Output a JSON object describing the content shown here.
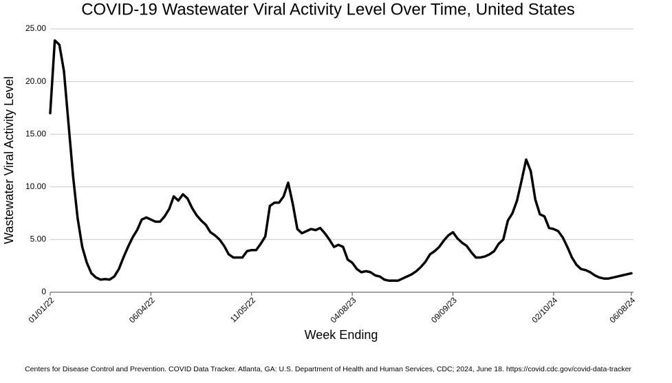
{
  "chart_data": {
    "type": "line",
    "title": "COVID-19 Wastewater Viral Activity Level Over Time, United States",
    "x_label": "Week Ending",
    "y_label": "Wastewater Viral Activity Level",
    "source": "Centers for Disease Control and Prevention. COVID Data Tracker. Atlanta, GA: U.S. Department of Health and Human Services, CDC; 2024, June 18. https://covid.cdc.gov/covid-data-tracker",
    "categories": [
      "01/01/22",
      "01/08/22",
      "01/15/22",
      "01/22/22",
      "01/29/22",
      "02/05/22",
      "02/12/22",
      "02/19/22",
      "02/26/22",
      "03/05/22",
      "03/12/22",
      "03/19/22",
      "03/26/22",
      "04/02/22",
      "04/09/22",
      "04/16/22",
      "04/23/22",
      "04/30/22",
      "05/07/22",
      "05/14/22",
      "05/21/22",
      "05/28/22",
      "06/04/22",
      "06/11/22",
      "06/18/22",
      "06/25/22",
      "07/02/22",
      "07/09/22",
      "07/16/22",
      "07/23/22",
      "07/30/22",
      "08/06/22",
      "08/13/22",
      "08/20/22",
      "08/27/22",
      "09/03/22",
      "09/10/22",
      "09/17/22",
      "09/24/22",
      "10/01/22",
      "10/08/22",
      "10/15/22",
      "10/22/22",
      "10/29/22",
      "11/05/22",
      "11/12/22",
      "11/19/22",
      "11/26/22",
      "12/03/22",
      "12/10/22",
      "12/17/22",
      "12/24/22",
      "12/31/22",
      "01/07/23",
      "01/14/23",
      "01/21/23",
      "01/28/23",
      "02/04/23",
      "02/11/23",
      "02/18/23",
      "02/25/23",
      "03/04/23",
      "03/11/23",
      "03/18/23",
      "03/25/23",
      "04/01/23",
      "04/08/23",
      "04/15/23",
      "04/22/23",
      "04/29/23",
      "05/06/23",
      "05/13/23",
      "05/20/23",
      "05/27/23",
      "06/03/23",
      "06/10/23",
      "06/17/23",
      "06/24/23",
      "07/01/23",
      "07/08/23",
      "07/15/23",
      "07/22/23",
      "07/29/23",
      "08/05/23",
      "08/12/23",
      "08/19/23",
      "08/26/23",
      "09/02/23",
      "09/09/23",
      "09/16/23",
      "09/23/23",
      "09/30/23",
      "10/07/23",
      "10/14/23",
      "10/21/23",
      "10/28/23",
      "11/04/23",
      "11/11/23",
      "11/18/23",
      "11/25/23",
      "12/02/23",
      "12/09/23",
      "12/16/23",
      "12/23/23",
      "12/30/23",
      "01/06/24",
      "01/13/24",
      "01/20/24",
      "01/27/24",
      "02/03/24",
      "02/10/24",
      "02/17/24",
      "02/24/24",
      "03/02/24",
      "03/09/24",
      "03/16/24",
      "03/23/24",
      "03/30/24",
      "04/06/24",
      "04/13/24",
      "04/20/24",
      "04/27/24",
      "05/04/24",
      "05/11/24",
      "05/18/24",
      "05/25/24",
      "06/01/24",
      "06/08/24"
    ],
    "series": [
      {
        "name": "Wastewater Viral Activity Level",
        "color": "#000000",
        "values": [
          17.0,
          23.9,
          23.5,
          21,
          16,
          11,
          7,
          4.3,
          2.8,
          1.8,
          1.4,
          1.2,
          1.25,
          1.2,
          1.5,
          2.2,
          3.3,
          4.3,
          5.2,
          5.9,
          6.9,
          7.1,
          6.9,
          6.7,
          6.7,
          7.2,
          7.9,
          9.1,
          8.7,
          9.3,
          8.9,
          8.0,
          7.3,
          6.8,
          6.4,
          5.7,
          5.4,
          5.0,
          4.4,
          3.6,
          3.3,
          3.3,
          3.3,
          3.9,
          4.0,
          4.0,
          4.6,
          5.3,
          8.2,
          8.5,
          8.5,
          9.1,
          10.4,
          8.4,
          6.0,
          5.6,
          5.8,
          6.0,
          5.9,
          6.1,
          5.6,
          5.0,
          4.3,
          4.5,
          4.3,
          3.1,
          2.8,
          2.2,
          1.9,
          2.0,
          1.9,
          1.6,
          1.5,
          1.2,
          1.1,
          1.1,
          1.1,
          1.3,
          1.5,
          1.7,
          2.0,
          2.4,
          2.9,
          3.6,
          3.9,
          4.3,
          4.9,
          5.4,
          5.7,
          5.1,
          4.7,
          4.4,
          3.8,
          3.3,
          3.3,
          3.4,
          3.6,
          3.9,
          4.6,
          5.0,
          6.8,
          7.5,
          8.7,
          10.6,
          12.6,
          11.5,
          8.8,
          7.4,
          7.2,
          6.1,
          6.0,
          5.8,
          5.2,
          4.3,
          3.3,
          2.6,
          2.2,
          2.1,
          1.9,
          1.6,
          1.4,
          1.3,
          1.3,
          1.4,
          1.5,
          1.6,
          1.7,
          1.8
        ]
      }
    ],
    "xticks": [
      "01/01/22",
      "06/04/22",
      "11/05/22",
      "04/08/23",
      "09/09/23",
      "02/10/24",
      "06/08/24"
    ],
    "ylim": [
      0,
      25
    ],
    "yticks": [
      {
        "value": 0,
        "label": "0"
      },
      {
        "value": 5,
        "label": "5.00"
      },
      {
        "value": 10,
        "label": "10.00"
      },
      {
        "value": 15,
        "label": "15.00"
      },
      {
        "value": 20,
        "label": "20.00"
      },
      {
        "value": 25,
        "label": "25.00"
      }
    ],
    "grid": true
  }
}
